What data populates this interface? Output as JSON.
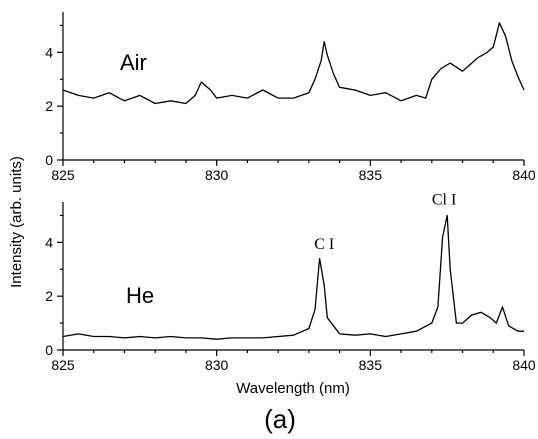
{
  "chart_data": [
    {
      "type": "line",
      "panel_label": "Air",
      "xlim": [
        825,
        840
      ],
      "ylim": [
        0,
        5.5
      ],
      "xticks": [
        825,
        830,
        835,
        840
      ],
      "yticks": [
        0,
        2,
        4
      ],
      "annotations": [],
      "series": [
        {
          "x": [
            825.0,
            825.5,
            826.0,
            826.5,
            827.0,
            827.5,
            828.0,
            828.5,
            829.0,
            829.3,
            829.5,
            829.8,
            830.0,
            830.5,
            831.0,
            831.5,
            832.0,
            832.5,
            833.0,
            833.2,
            833.4,
            833.5,
            833.6,
            833.8,
            834.0,
            834.5,
            835.0,
            835.5,
            836.0,
            836.5,
            836.8,
            837.0,
            837.3,
            837.6,
            838.0,
            838.5,
            838.8,
            839.0,
            839.2,
            839.4,
            839.6,
            839.8,
            840.0
          ],
          "y": [
            2.6,
            2.4,
            2.3,
            2.5,
            2.2,
            2.4,
            2.1,
            2.2,
            2.1,
            2.4,
            2.9,
            2.6,
            2.3,
            2.4,
            2.3,
            2.6,
            2.3,
            2.3,
            2.5,
            3.0,
            3.7,
            4.4,
            3.9,
            3.2,
            2.7,
            2.6,
            2.4,
            2.5,
            2.2,
            2.4,
            2.3,
            3.0,
            3.4,
            3.6,
            3.3,
            3.8,
            4.0,
            4.2,
            5.1,
            4.6,
            3.7,
            3.1,
            2.6
          ]
        }
      ]
    },
    {
      "type": "line",
      "panel_label": "He",
      "xlim": [
        825,
        840
      ],
      "ylim": [
        0,
        5.5
      ],
      "xticks": [
        825,
        830,
        835,
        840
      ],
      "yticks": [
        0,
        2,
        4
      ],
      "annotations": [
        {
          "text": "C I",
          "x": 833.5,
          "y": 3.6
        },
        {
          "text": "Cl I",
          "x": 837.4,
          "y": 5.25
        }
      ],
      "series": [
        {
          "x": [
            825.0,
            825.5,
            826.0,
            826.5,
            827.0,
            827.5,
            828.0,
            828.5,
            829.0,
            829.5,
            830.0,
            830.5,
            831.0,
            831.5,
            832.0,
            832.5,
            833.0,
            833.2,
            833.35,
            833.5,
            833.6,
            833.8,
            834.0,
            834.5,
            835.0,
            835.5,
            836.0,
            836.5,
            837.0,
            837.2,
            837.35,
            837.5,
            837.6,
            837.8,
            838.0,
            838.3,
            838.6,
            838.9,
            839.1,
            839.3,
            839.5,
            839.8,
            840.0
          ],
          "y": [
            0.5,
            0.6,
            0.5,
            0.5,
            0.45,
            0.5,
            0.45,
            0.5,
            0.45,
            0.45,
            0.4,
            0.45,
            0.45,
            0.45,
            0.5,
            0.55,
            0.8,
            1.5,
            3.4,
            2.4,
            1.2,
            0.9,
            0.6,
            0.55,
            0.6,
            0.5,
            0.6,
            0.7,
            1.0,
            1.6,
            4.2,
            5.0,
            3.0,
            1.0,
            1.0,
            1.3,
            1.4,
            1.2,
            1.0,
            1.6,
            0.9,
            0.7,
            0.7
          ]
        }
      ]
    }
  ],
  "axes": {
    "ylabel": "Intensity (arb. units)",
    "xlabel": "Wavelength (nm)"
  },
  "caption": "(a)"
}
